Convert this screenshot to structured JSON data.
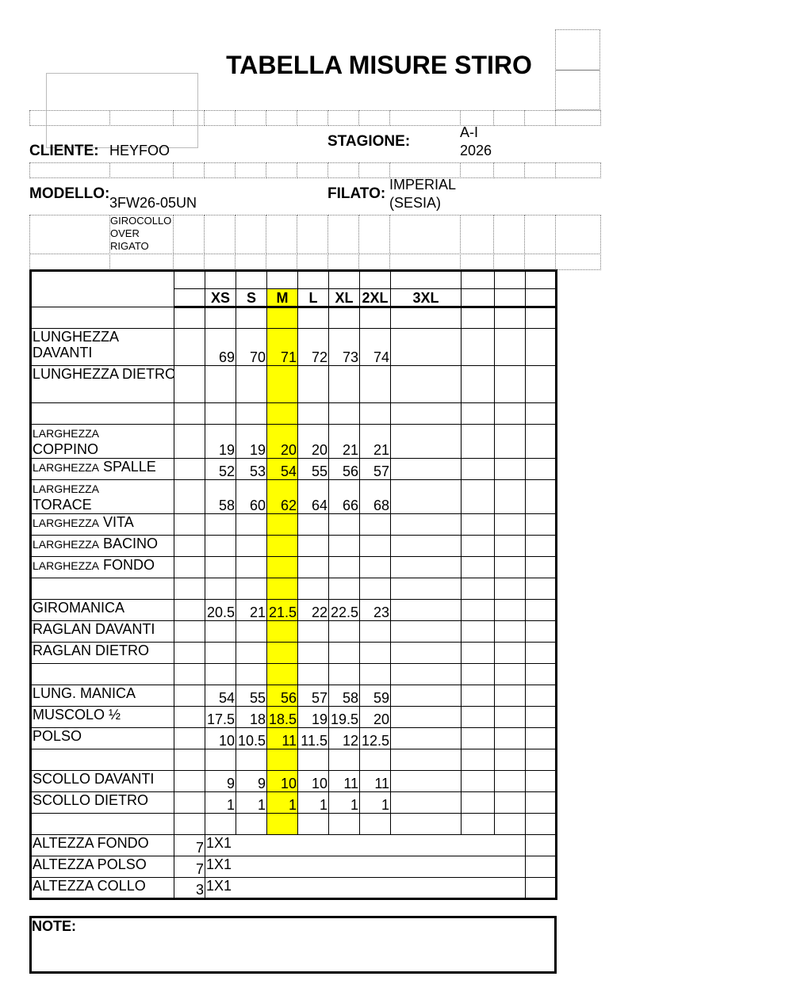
{
  "title": "TABELLA MISURE STIRO",
  "header": {
    "cliente_label": "CLIENTE:",
    "cliente_value": "HEYFOO",
    "stagione_label": "STAGIONE:",
    "stagione_value_line1": "A-I",
    "stagione_value_line2": "2026",
    "modello_label": "MODELLO:",
    "modello_value": "3FW26-05UN",
    "filato_label": "FILATO:",
    "filato_value_line1": "IMPERIAL",
    "filato_value_line2": "(SESIA)",
    "description_lines": [
      "GIROCOLLO",
      "OVER",
      "RIGATO"
    ]
  },
  "table": {
    "sizes": [
      "XS",
      "S",
      "M",
      "L",
      "XL",
      "2XL",
      "3XL"
    ],
    "highlight_size": "M",
    "highlight_color": "#ffff00",
    "rows": [
      {
        "small": "",
        "main": "",
        "values": []
      },
      {
        "small": "",
        "main": "LUNGHEZZA DAVANTI",
        "values": [
          "69",
          "70",
          "71",
          "72",
          "73",
          "74"
        ]
      },
      {
        "small": "",
        "main": "LUNGHEZZA DIETRO",
        "values": []
      },
      {
        "small": "",
        "main": "",
        "values": []
      },
      {
        "small": "LARGHEZZA",
        "main": "COPPINO",
        "values": [
          "19",
          "19",
          "20",
          "20",
          "21",
          "21"
        ],
        "break": true
      },
      {
        "small": "LARGHEZZA",
        "main": "SPALLE",
        "values": [
          "52",
          "53",
          "54",
          "55",
          "56",
          "57"
        ]
      },
      {
        "small": "LARGHEZZA",
        "main": "TORACE",
        "values": [
          "58",
          "60",
          "62",
          "64",
          "66",
          "68"
        ],
        "break": true
      },
      {
        "small": "LARGHEZZA",
        "main": "VITA",
        "values": []
      },
      {
        "small": "LARGHEZZA",
        "main": "BACINO",
        "values": []
      },
      {
        "small": "LARGHEZZA",
        "main": "FONDO",
        "values": []
      },
      {
        "small": "",
        "main": "",
        "values": []
      },
      {
        "small": "",
        "main": "GIROMANICA",
        "values": [
          "20.5",
          "21",
          "21.5",
          "22",
          "22.5",
          "23"
        ]
      },
      {
        "small": "",
        "main": "RAGLAN DAVANTI",
        "values": []
      },
      {
        "small": "",
        "main": "RAGLAN DIETRO",
        "values": []
      },
      {
        "small": "",
        "main": "",
        "values": []
      },
      {
        "small": "",
        "main": "LUNG. MANICA",
        "values": [
          "54",
          "55",
          "56",
          "57",
          "58",
          "59"
        ]
      },
      {
        "small": "",
        "main": "MUSCOLO ½",
        "values": [
          "17.5",
          "18",
          "18.5",
          "19",
          "19.5",
          "20"
        ]
      },
      {
        "small": "",
        "main": "POLSO",
        "values": [
          "10",
          "10.5",
          "11",
          "11.5",
          "12",
          "12.5"
        ]
      },
      {
        "small": "",
        "main": "",
        "values": []
      },
      {
        "small": "",
        "main": "SCOLLO DAVANTI",
        "values": [
          "9",
          "9",
          "10",
          "10",
          "11",
          "11"
        ]
      },
      {
        "small": "",
        "main": "SCOLLO DIETRO",
        "values": [
          "1",
          "1",
          "1",
          "1",
          "1",
          "1"
        ]
      },
      {
        "small": "",
        "main": "",
        "values": []
      }
    ],
    "finishing_rows": [
      {
        "label": "ALTEZZA FONDO",
        "value": "7",
        "stitch": "1X1"
      },
      {
        "label": "ALTEZZA POLSO",
        "value": "7",
        "stitch": "1X1"
      },
      {
        "label": "ALTEZZA COLLO",
        "value": "3",
        "stitch": "1X1"
      }
    ]
  },
  "note_label": "NOTE:"
}
